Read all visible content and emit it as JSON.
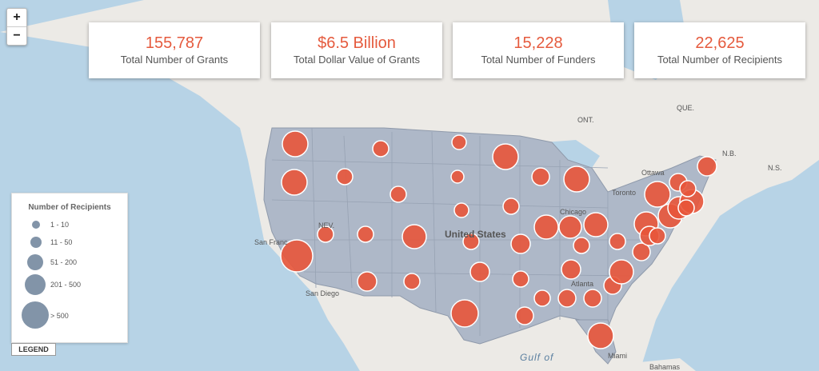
{
  "zoom": {
    "in_label": "+",
    "out_label": "−"
  },
  "stats": [
    {
      "value": "155,787",
      "label": "Total Number of Grants"
    },
    {
      "value": "$6.5 Billion",
      "label": "Total Dollar Value of Grants"
    },
    {
      "value": "15,228",
      "label": "Total Number of Funders"
    },
    {
      "value": "22,625",
      "label": "Total Number of Recipients"
    }
  ],
  "legend": {
    "title": "Number of Recipients",
    "items": [
      "1 - 10",
      "11 - 50",
      "51 - 200",
      "201 - 500",
      "> 500"
    ],
    "toggle_label": "LEGEND"
  },
  "map_labels": {
    "country": "United States",
    "que": "QUE.",
    "ont": "ONT.",
    "nb": "N.B.",
    "ns": "N.S.",
    "ottawa": "Ottawa",
    "toronto": "Toronto",
    "chicago": "Chicago",
    "atlanta": "Atlanta",
    "miami": "Miami",
    "sanfran": "San Franc",
    "sandiego": "San Diego",
    "gulf": "Gulf of",
    "bahamas": "Bahamas",
    "nev": "NEV."
  },
  "colors": {
    "bubble": "#e8553a",
    "legend_dot": "#8294a8",
    "land_us": "#aeb8c8",
    "water": "#b7d3e6"
  }
}
